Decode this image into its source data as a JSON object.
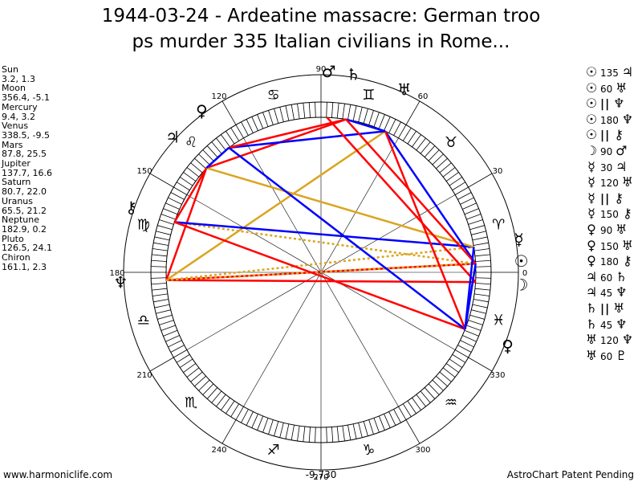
{
  "title": {
    "line1": "1944-03-24 - Ardeatine massacre: German troo",
    "line2": "ps murder 335 Italian civilians in Rome..."
  },
  "planet_positions": [
    {
      "name": "Sun",
      "coords": "3.2, 1.3"
    },
    {
      "name": "Moon",
      "coords": "356.4, -5.1"
    },
    {
      "name": "Mercury",
      "coords": "9.4, 3.2"
    },
    {
      "name": "Venus",
      "coords": "338.5, -9.5"
    },
    {
      "name": "Mars",
      "coords": "87.8, 25.5"
    },
    {
      "name": "Jupiter",
      "coords": "137.7, 16.6"
    },
    {
      "name": "Saturn",
      "coords": "80.7, 22.0"
    },
    {
      "name": "Uranus",
      "coords": "65.5, 21.2"
    },
    {
      "name": "Neptune",
      "coords": "182.9, 0.2"
    },
    {
      "name": "Pluto",
      "coords": "126.5, 24.1"
    },
    {
      "name": "Chiron",
      "coords": "161.1, 2.3"
    }
  ],
  "aspects": [
    {
      "p1": "☉",
      "angle": "135",
      "p2": "♃"
    },
    {
      "p1": "☉",
      "angle": "60",
      "p2": "♅"
    },
    {
      "p1": "☉",
      "angle": "||",
      "p2": "♆"
    },
    {
      "p1": "☉",
      "angle": "180",
      "p2": "♆"
    },
    {
      "p1": "☉",
      "angle": "||",
      "p2": "⚷"
    },
    {
      "p1": "☽",
      "angle": "90",
      "p2": "♂"
    },
    {
      "p1": "☿",
      "angle": "30",
      "p2": "♃"
    },
    {
      "p1": "☿",
      "angle": "120",
      "p2": "♅"
    },
    {
      "p1": "☿",
      "angle": "||",
      "p2": "⚷"
    },
    {
      "p1": "☿",
      "angle": "150",
      "p2": "⚷"
    },
    {
      "p1": "♀",
      "angle": "90",
      "p2": "♅"
    },
    {
      "p1": "♀",
      "angle": "150",
      "p2": "♅"
    },
    {
      "p1": "♀",
      "angle": "180",
      "p2": "⚷"
    },
    {
      "p1": "♃",
      "angle": "60",
      "p2": "♄"
    },
    {
      "p1": "♃",
      "angle": "45",
      "p2": "♆"
    },
    {
      "p1": "♄",
      "angle": "||",
      "p2": "♅"
    },
    {
      "p1": "♄",
      "angle": "45",
      "p2": "♆"
    },
    {
      "p1": "♅",
      "angle": "120",
      "p2": "♆"
    },
    {
      "p1": "♅",
      "angle": "60",
      "p2": "♇"
    }
  ],
  "wheel": {
    "degree_labels": [
      "90",
      "60",
      "30",
      "0",
      "330",
      "300",
      "270",
      "240",
      "210",
      "180",
      "150",
      "120"
    ],
    "zodiac_signs": [
      {
        "name": "aries",
        "glyph": "♈",
        "start": 0
      },
      {
        "name": "taurus",
        "glyph": "♉",
        "start": 30
      },
      {
        "name": "gemini",
        "glyph": "♊",
        "start": 60
      },
      {
        "name": "cancer",
        "glyph": "♋",
        "start": 90
      },
      {
        "name": "leo",
        "glyph": "♌",
        "start": 120
      },
      {
        "name": "virgo",
        "glyph": "♍",
        "start": 150
      },
      {
        "name": "libra",
        "glyph": "♎",
        "start": 180
      },
      {
        "name": "scorpio",
        "glyph": "♏",
        "start": 210
      },
      {
        "name": "sagittarius",
        "glyph": "♐",
        "start": 240
      },
      {
        "name": "capricorn",
        "glyph": "♑",
        "start": 270
      },
      {
        "name": "aquarius",
        "glyph": "♒",
        "start": 300
      },
      {
        "name": "pisces",
        "glyph": "♓",
        "start": 330
      }
    ],
    "planets": [
      {
        "name": "sun",
        "glyph": "☉",
        "lon": 3.2
      },
      {
        "name": "moon",
        "glyph": "☽",
        "lon": 356.4
      },
      {
        "name": "mercury",
        "glyph": "☿",
        "lon": 9.4
      },
      {
        "name": "venus",
        "glyph": "♀",
        "lon": 338.5
      },
      {
        "name": "mars",
        "glyph": "♂",
        "lon": 87.8
      },
      {
        "name": "jupiter",
        "glyph": "♃",
        "lon": 137.7
      },
      {
        "name": "saturn",
        "glyph": "♄",
        "lon": 80.7
      },
      {
        "name": "uranus",
        "glyph": "♅",
        "lon": 65.5
      },
      {
        "name": "neptune",
        "glyph": "♆",
        "lon": 182.9
      },
      {
        "name": "pluto",
        "glyph": "♀",
        "lon": 126.5
      },
      {
        "name": "chiron",
        "glyph": "⚷",
        "lon": 161.1
      }
    ],
    "aspect_lines": [
      {
        "from": "neptune",
        "to": "sun",
        "color": "#ff0000"
      },
      {
        "from": "neptune",
        "to": "moon",
        "color": "#ff0000"
      },
      {
        "from": "neptune",
        "to": "uranus",
        "color": "#daa520"
      },
      {
        "from": "neptune",
        "to": "jupiter",
        "color": "#ff0000"
      },
      {
        "from": "neptune",
        "to": "mercury",
        "color": "#daa520",
        "dotted": true
      },
      {
        "from": "neptune",
        "to": "sun",
        "color": "#daa520",
        "dotted": true
      },
      {
        "from": "chiron",
        "to": "sun",
        "color": "#daa520",
        "dotted": true
      },
      {
        "from": "chiron",
        "to": "mercury",
        "color": "#0000ff"
      },
      {
        "from": "chiron",
        "to": "venus",
        "color": "#ff0000"
      },
      {
        "from": "chiron",
        "to": "jupiter",
        "color": "#ff0000"
      },
      {
        "from": "jupiter",
        "to": "saturn",
        "color": "#ff0000"
      },
      {
        "from": "jupiter",
        "to": "mercury",
        "color": "#daa520"
      },
      {
        "from": "jupiter",
        "to": "pluto",
        "color": "#0000ff"
      },
      {
        "from": "pluto",
        "to": "uranus",
        "color": "#0000ff"
      },
      {
        "from": "pluto",
        "to": "saturn",
        "color": "#ff0000"
      },
      {
        "from": "pluto",
        "to": "venus",
        "color": "#0000ff"
      },
      {
        "from": "uranus",
        "to": "sun",
        "color": "#0000ff"
      },
      {
        "from": "uranus",
        "to": "venus",
        "color": "#ff0000"
      },
      {
        "from": "uranus",
        "to": "saturn",
        "color": "#0000ff"
      },
      {
        "from": "saturn",
        "to": "sun",
        "color": "#ff0000"
      },
      {
        "from": "mars",
        "to": "moon",
        "color": "#ff0000"
      },
      {
        "from": "sun",
        "to": "venus",
        "color": "#0000ff"
      },
      {
        "from": "mercury",
        "to": "venus",
        "color": "#0000ff"
      }
    ]
  },
  "footer": {
    "left": "www.harmoniclife.com",
    "middle": "-9,730",
    "right": "AstroChart Patent Pending"
  }
}
